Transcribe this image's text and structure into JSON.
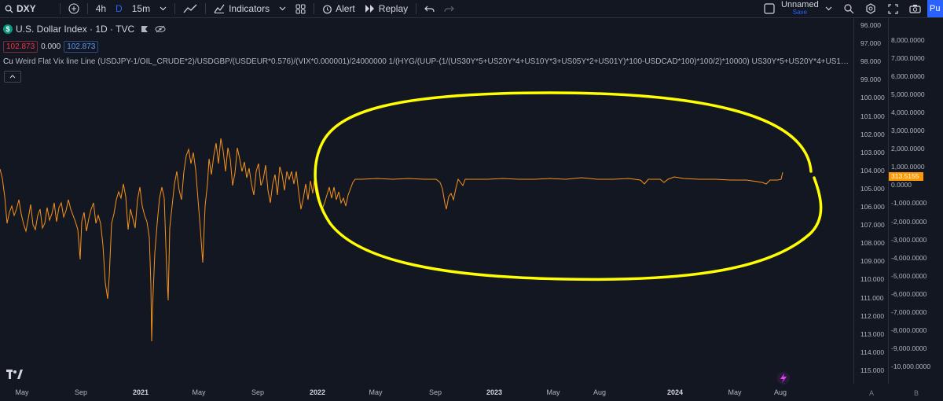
{
  "toolbar": {
    "symbol": "DXY",
    "intervals": [
      "4h",
      "D",
      "15m"
    ],
    "indicators_label": "Indicators",
    "alert_label": "Alert",
    "replay_label": "Replay",
    "layout_name": "Unnamed",
    "save_label": "Save",
    "publish_label": "Pu"
  },
  "legend": {
    "title": "U.S. Dollar Index · 1D · TVC",
    "values": [
      "102.873",
      "0.000",
      "102.873"
    ],
    "formula_prefix": "Cu",
    "formula": "Weird Flat Vix line Line (USDJPY-1/OIL_CRUDE*2)/USDGBP/(USDEUR*0.576)/(VIX*0.000001)/24000000 1/(HYG/(UUP-(1/(US30Y*5+US20Y*4+US10Y*3+US05Y*2+US01Y)*100-USDCAD*100)*100/2)*10000) US30Y*5+US20Y*4+US10Y*3+US05Y*2+US01..."
  },
  "price_scale_left": [
    "96.000",
    "97.000",
    "98.000",
    "99.000",
    "100.000",
    "101.000",
    "102.000",
    "103.000",
    "104.000",
    "105.000",
    "106.000",
    "107.000",
    "108.000",
    "109.000",
    "110.000",
    "111.000",
    "112.000",
    "113.000",
    "114.000",
    "115.000"
  ],
  "price_scale_right": [
    "8,000.0000",
    "7,000.0000",
    "6,000.0000",
    "5,000.0000",
    "4,000.0000",
    "3,000.0000",
    "2,000.0000",
    "1,000.0000",
    "0.0000",
    "-1,000.0000",
    "-2,000.0000",
    "-3,000.0000",
    "-4,000.0000",
    "-5,000.0000",
    "-6,000.0000",
    "-7,000.0000",
    "-8,000.0000",
    "-9,000.0000",
    "-10,000.0000"
  ],
  "price_tag": "313.5155",
  "time_axis": [
    "May",
    "Sep",
    "2021",
    "May",
    "Sep",
    "2022",
    "May",
    "Sep",
    "2023",
    "May",
    "Aug",
    "2024",
    "May",
    "Aug"
  ],
  "scale_buttons": [
    "A",
    "B"
  ],
  "colors": {
    "series": "#f7931a",
    "highlight": "#ffff00",
    "accent": "#2962ff"
  }
}
